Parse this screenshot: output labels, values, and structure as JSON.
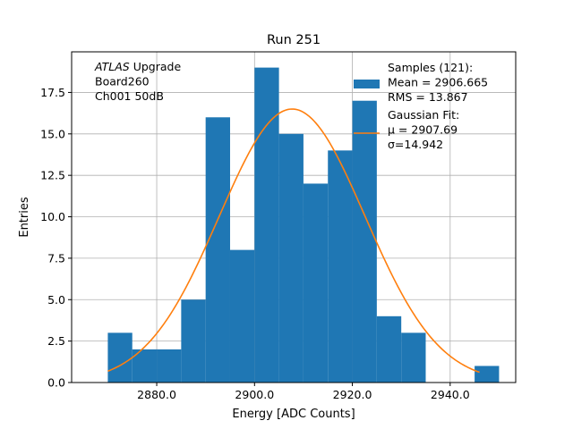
{
  "chart_data": {
    "type": "bar",
    "title": "Run 251",
    "xlabel": "Energy [ADC Counts]",
    "ylabel": "Entries",
    "xlim": [
      2862.6,
      2953.4
    ],
    "ylim": [
      0,
      19.95
    ],
    "grid": true,
    "x_ticks": [
      2880,
      2900,
      2920,
      2940
    ],
    "x_tick_labels": [
      "2880.0",
      "2900.0",
      "2920.0",
      "2940.0"
    ],
    "y_ticks": [
      0,
      2.5,
      5,
      7.5,
      10,
      12.5,
      15,
      17.5
    ],
    "y_tick_labels": [
      "0.0",
      "2.5",
      "5.0",
      "7.5",
      "10.0",
      "12.5",
      "15.0",
      "17.5"
    ],
    "bins": [
      {
        "x0": 2870,
        "x1": 2875,
        "count": 3
      },
      {
        "x0": 2875,
        "x1": 2880,
        "count": 2
      },
      {
        "x0": 2880,
        "x1": 2885,
        "count": 2
      },
      {
        "x0": 2885,
        "x1": 2890,
        "count": 5
      },
      {
        "x0": 2890,
        "x1": 2895,
        "count": 16
      },
      {
        "x0": 2895,
        "x1": 2900,
        "count": 8
      },
      {
        "x0": 2900,
        "x1": 2905,
        "count": 19
      },
      {
        "x0": 2905,
        "x1": 2910,
        "count": 15
      },
      {
        "x0": 2910,
        "x1": 2915,
        "count": 12
      },
      {
        "x0": 2915,
        "x1": 2920,
        "count": 14
      },
      {
        "x0": 2920,
        "x1": 2925,
        "count": 17
      },
      {
        "x0": 2925,
        "x1": 2930,
        "count": 4
      },
      {
        "x0": 2930,
        "x1": 2935,
        "count": 3
      },
      {
        "x0": 2935,
        "x1": 2940,
        "count": 0
      },
      {
        "x0": 2940,
        "x1": 2945,
        "count": 0
      },
      {
        "x0": 2945,
        "x1": 2950,
        "count": 1
      }
    ],
    "fit": {
      "type": "gaussian",
      "mu": 2907.69,
      "sigma": 14.942,
      "amplitude": 16.5,
      "x_range": [
        2870,
        2946
      ]
    },
    "hist_color": "#1f77b4",
    "fit_color": "#ff7f0e",
    "annotation_lines": [
      {
        "italic": "ATLAS",
        "normal": " Upgrade"
      },
      {
        "italic": "",
        "normal": " Board260"
      },
      {
        "italic": "",
        "normal": " Ch001 50dB"
      }
    ],
    "legend": {
      "placement": "top-right",
      "hist_lines": [
        "Samples (121):",
        " Mean = 2906.665",
        " RMS = 13.867"
      ],
      "fit_lines": [
        "Gaussian Fit:",
        " μ = 2907.69",
        " σ=14.942"
      ]
    }
  }
}
